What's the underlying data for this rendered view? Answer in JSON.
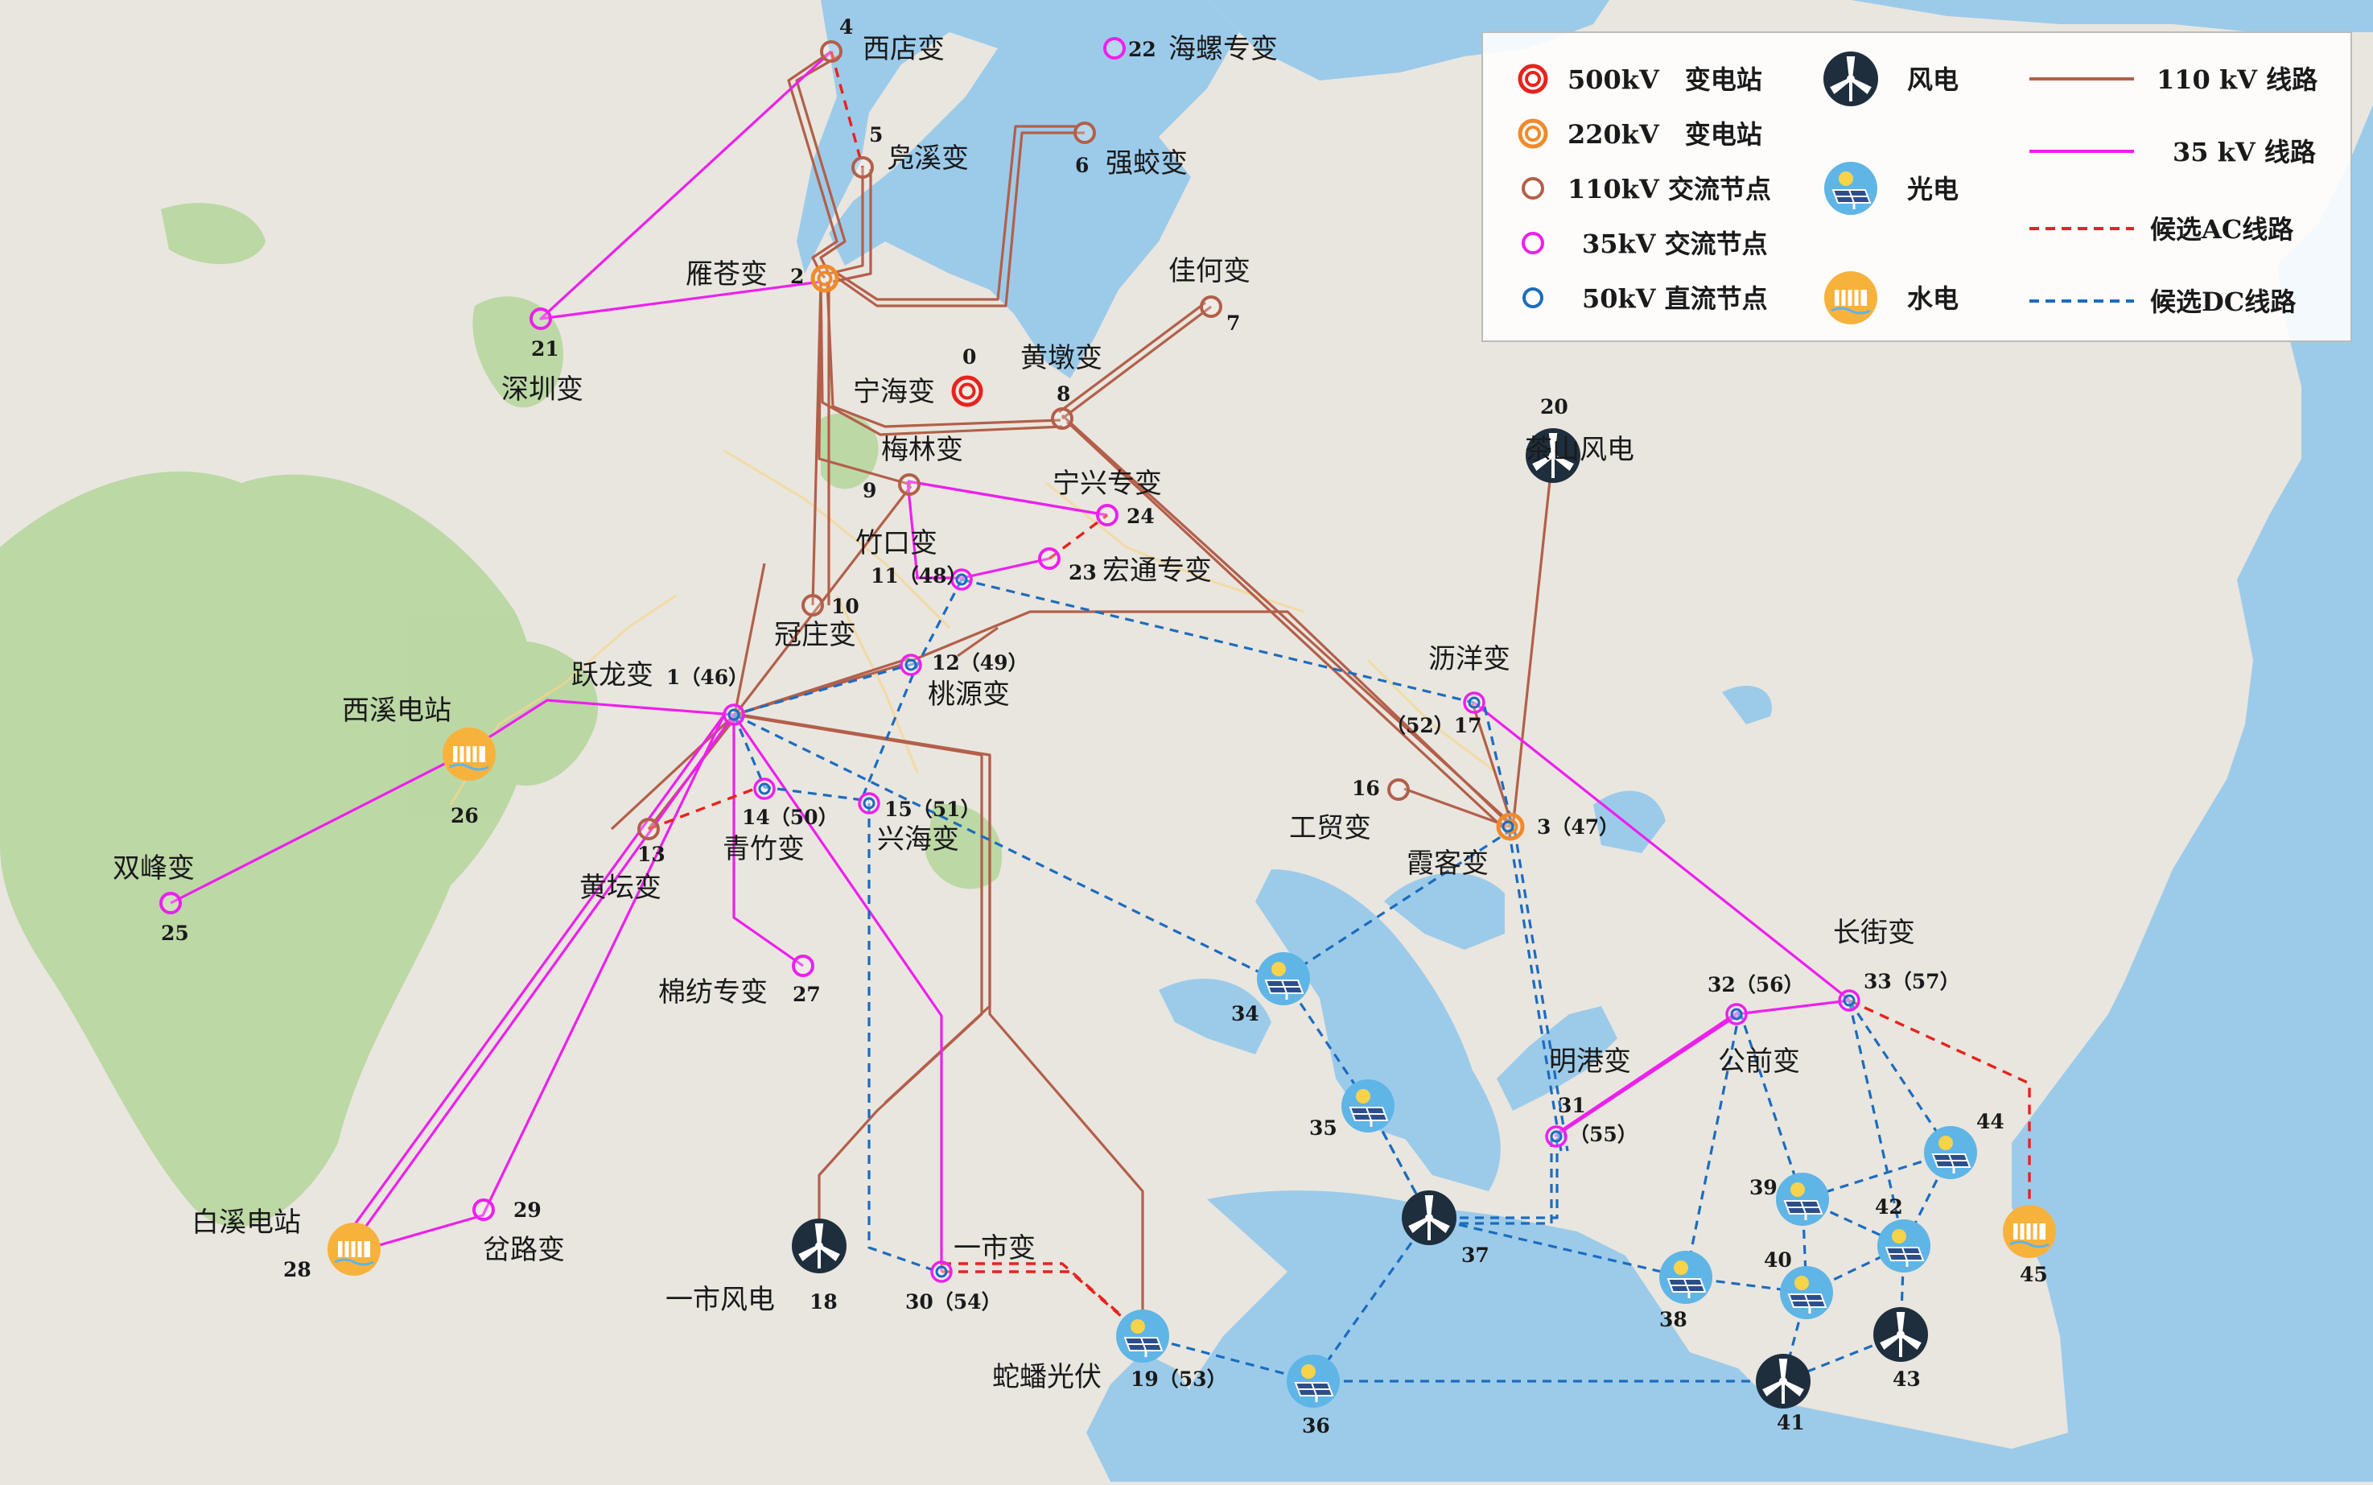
{
  "map": {
    "colors": {
      "water": "#9ccbea",
      "land": "#e9e6df",
      "forest": "#b9d7a1",
      "line110": "#b35f4a",
      "line35": "#ee1fee",
      "candAC": "#e8221d",
      "candDC": "#1c6cbf",
      "node500": "#e8221d",
      "node220": "#f08a2a",
      "node110": "#b35f4a",
      "node35": "#ee1fee",
      "node50": "#1c6cbf",
      "wind": "#1f2e3d",
      "solar": "#5fb5e6",
      "hydro": "#f7b23c"
    },
    "labels": [
      {
        "id": "xidian",
        "text": "西店变"
      },
      {
        "id": "haoxi",
        "text": "凫溪变"
      },
      {
        "id": "hailuo",
        "text": "海螺专变"
      },
      {
        "id": "qiangjiao",
        "text": "强蛟变"
      },
      {
        "id": "yancang",
        "text": "雁苍变"
      },
      {
        "id": "jiahe",
        "text": "佳何变"
      },
      {
        "id": "ninghai",
        "text": "宁海变"
      },
      {
        "id": "huangdun",
        "text": "黄墩变"
      },
      {
        "id": "shenzhen",
        "text": "深圳变"
      },
      {
        "id": "meilin",
        "text": "梅林变"
      },
      {
        "id": "ningxing",
        "text": "宁兴专变"
      },
      {
        "id": "zhukou",
        "text": "竹口变"
      },
      {
        "id": "hongtong",
        "text": "宏通专变"
      },
      {
        "id": "guanzhuang",
        "text": "冠庄变"
      },
      {
        "id": "liyang",
        "text": "沥洋变"
      },
      {
        "id": "yuelong",
        "text": "跃龙变"
      },
      {
        "id": "taoyuan",
        "text": "桃源变"
      },
      {
        "id": "xixi",
        "text": "西溪电站"
      },
      {
        "id": "gongmao",
        "text": "工贸变"
      },
      {
        "id": "xiake",
        "text": "霞客变"
      },
      {
        "id": "qingzhu",
        "text": "青竹变"
      },
      {
        "id": "xinghai",
        "text": "兴海变"
      },
      {
        "id": "huangtan",
        "text": "黄坛变"
      },
      {
        "id": "shuangfeng",
        "text": "双峰变"
      },
      {
        "id": "chashan",
        "text": "茶山风电"
      },
      {
        "id": "changjie",
        "text": "长街变"
      },
      {
        "id": "mianfang",
        "text": "棉纺专变"
      },
      {
        "id": "mingang",
        "text": "明港变"
      },
      {
        "id": "gongqian",
        "text": "公前变"
      },
      {
        "id": "baixi",
        "text": "白溪电站"
      },
      {
        "id": "chalu",
        "text": "岔路变"
      },
      {
        "id": "yishi",
        "text": "一市变"
      },
      {
        "id": "yishifeng",
        "text": "一市风电"
      },
      {
        "id": "shepan",
        "text": "蛇蟠光伏"
      }
    ],
    "numbers": [
      {
        "id": "n0",
        "text": "0"
      },
      {
        "id": "n2",
        "text": "2"
      },
      {
        "id": "n4",
        "text": "4"
      },
      {
        "id": "n5",
        "text": "5"
      },
      {
        "id": "n6",
        "text": "6"
      },
      {
        "id": "n7",
        "text": "7"
      },
      {
        "id": "n8",
        "text": "8"
      },
      {
        "id": "n9",
        "text": "9"
      },
      {
        "id": "n10",
        "text": "10"
      },
      {
        "id": "n11",
        "text": "11（48）"
      },
      {
        "id": "n12",
        "text": "12（49）"
      },
      {
        "id": "n13",
        "text": "13"
      },
      {
        "id": "n14",
        "text": "14（50）"
      },
      {
        "id": "n15",
        "text": "15（51）"
      },
      {
        "id": "n16",
        "text": "16"
      },
      {
        "id": "n17",
        "text": "（52）17"
      },
      {
        "id": "n18",
        "text": "18"
      },
      {
        "id": "n19",
        "text": "19（53）"
      },
      {
        "id": "n20",
        "text": "20"
      },
      {
        "id": "n21",
        "text": "21"
      },
      {
        "id": "n22",
        "text": "22"
      },
      {
        "id": "n23",
        "text": "23"
      },
      {
        "id": "n24",
        "text": "24"
      },
      {
        "id": "n25",
        "text": "25"
      },
      {
        "id": "n26",
        "text": "26"
      },
      {
        "id": "n27",
        "text": "27"
      },
      {
        "id": "n28",
        "text": "28"
      },
      {
        "id": "n29",
        "text": "29"
      },
      {
        "id": "n30",
        "text": "30（54）"
      },
      {
        "id": "n31",
        "text": "31"
      },
      {
        "id": "n31b",
        "text": "（55）"
      },
      {
        "id": "n32",
        "text": "32（56）"
      },
      {
        "id": "n33",
        "text": "33（57）"
      },
      {
        "id": "n34",
        "text": "34"
      },
      {
        "id": "n35",
        "text": "35"
      },
      {
        "id": "n36",
        "text": "36"
      },
      {
        "id": "n37",
        "text": "37"
      },
      {
        "id": "n38",
        "text": "38"
      },
      {
        "id": "n39",
        "text": "39"
      },
      {
        "id": "n40",
        "text": "40"
      },
      {
        "id": "n41",
        "text": "41"
      },
      {
        "id": "n42",
        "text": "42"
      },
      {
        "id": "n43",
        "text": "43"
      },
      {
        "id": "n44",
        "text": "44"
      },
      {
        "id": "n45",
        "text": "45"
      },
      {
        "id": "n1",
        "text": "1（46）"
      },
      {
        "id": "n3",
        "text": "3（47）"
      }
    ]
  },
  "legend": {
    "items": [
      {
        "id": "l500",
        "text": "500kV　变电站"
      },
      {
        "id": "l220",
        "text": "220kV　变电站"
      },
      {
        "id": "l110",
        "text": "110kV 交流节点"
      },
      {
        "id": "l35",
        "text": "35kV 交流节点"
      },
      {
        "id": "l50",
        "text": "50kV 直流节点"
      },
      {
        "id": "lwind",
        "text": "风电"
      },
      {
        "id": "lsolar",
        "text": "光电"
      },
      {
        "id": "lhydro",
        "text": "水电"
      },
      {
        "id": "lline110",
        "text": "110 kV 线路"
      },
      {
        "id": "lline35",
        "text": "35 kV 线路"
      },
      {
        "id": "lcandac",
        "text": "候选AC线路"
      },
      {
        "id": "lcanddc",
        "text": "候选DC线路"
      }
    ]
  }
}
